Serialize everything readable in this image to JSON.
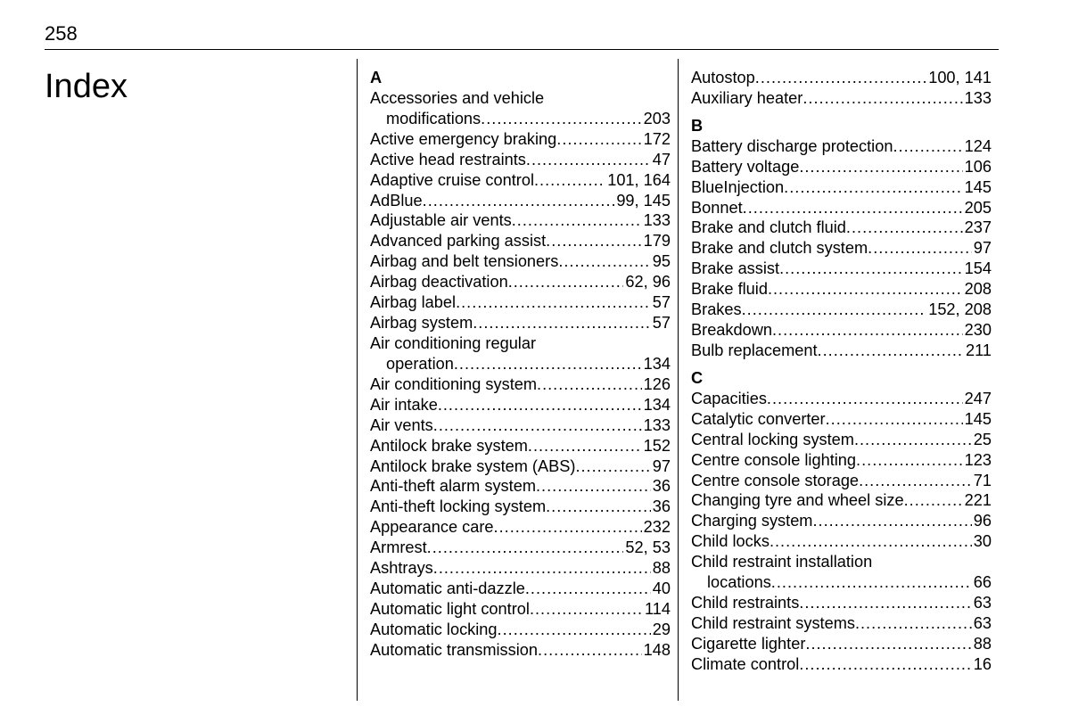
{
  "page_number": "258",
  "title": "Index",
  "columns": [
    {
      "sections": [
        {
          "letter": "A",
          "entries": [
            {
              "label": "Accessories and vehicle",
              "pages": "",
              "wrap": true
            },
            {
              "label": "modifications",
              "pages": "203",
              "indent": true
            },
            {
              "label": "Active emergency braking",
              "pages": "172"
            },
            {
              "label": "Active head restraints",
              "pages": "47"
            },
            {
              "label": "Adaptive cruise control",
              "pages": "101, 164"
            },
            {
              "label": "AdBlue",
              "pages": "99, 145"
            },
            {
              "label": "Adjustable air vents",
              "pages": "133"
            },
            {
              "label": "Advanced parking assist",
              "pages": "179"
            },
            {
              "label": "Airbag and belt tensioners",
              "pages": "95"
            },
            {
              "label": "Airbag deactivation",
              "pages": "62, 96"
            },
            {
              "label": "Airbag label",
              "pages": "57"
            },
            {
              "label": "Airbag system",
              "pages": "57"
            },
            {
              "label": "Air conditioning regular",
              "pages": "",
              "wrap": true
            },
            {
              "label": "operation",
              "pages": "134",
              "indent": true
            },
            {
              "label": "Air conditioning system",
              "pages": "126"
            },
            {
              "label": "Air intake",
              "pages": "134"
            },
            {
              "label": "Air vents",
              "pages": "133"
            },
            {
              "label": "Antilock brake system",
              "pages": "152"
            },
            {
              "label": "Antilock brake system (ABS)",
              "pages": "97"
            },
            {
              "label": "Anti-theft alarm system",
              "pages": "36"
            },
            {
              "label": "Anti-theft locking system",
              "pages": "36"
            },
            {
              "label": "Appearance care",
              "pages": "232"
            },
            {
              "label": "Armrest",
              "pages": "52, 53"
            },
            {
              "label": "Ashtrays",
              "pages": "88"
            },
            {
              "label": "Automatic anti-dazzle",
              "pages": "40"
            },
            {
              "label": "Automatic light control",
              "pages": "114"
            },
            {
              "label": "Automatic locking",
              "pages": "29"
            },
            {
              "label": "Automatic transmission",
              "pages": "148"
            }
          ]
        }
      ]
    },
    {
      "sections": [
        {
          "letter": "",
          "entries": [
            {
              "label": "Autostop",
              "pages": "100, 141"
            },
            {
              "label": "Auxiliary heater",
              "pages": "133"
            }
          ]
        },
        {
          "letter": "B",
          "entries": [
            {
              "label": "Battery discharge protection",
              "pages": "124"
            },
            {
              "label": "Battery voltage",
              "pages": "106"
            },
            {
              "label": "BlueInjection",
              "pages": "145"
            },
            {
              "label": "Bonnet",
              "pages": "205"
            },
            {
              "label": "Brake and clutch fluid",
              "pages": "237"
            },
            {
              "label": "Brake and clutch system",
              "pages": "97"
            },
            {
              "label": "Brake assist",
              "pages": "154"
            },
            {
              "label": "Brake fluid",
              "pages": "208"
            },
            {
              "label": "Brakes",
              "pages": "152, 208"
            },
            {
              "label": "Breakdown",
              "pages": "230"
            },
            {
              "label": "Bulb replacement",
              "pages": "211"
            }
          ]
        },
        {
          "letter": "C",
          "entries": [
            {
              "label": "Capacities",
              "pages": "247"
            },
            {
              "label": "Catalytic converter",
              "pages": "145"
            },
            {
              "label": "Central locking system",
              "pages": "25"
            },
            {
              "label": "Centre console lighting",
              "pages": "123"
            },
            {
              "label": "Centre console storage",
              "pages": "71"
            },
            {
              "label": "Changing tyre and wheel size",
              "pages": "221"
            },
            {
              "label": "Charging system",
              "pages": "96"
            },
            {
              "label": "Child locks",
              "pages": "30"
            },
            {
              "label": "Child restraint installation",
              "pages": "",
              "wrap": true
            },
            {
              "label": "locations",
              "pages": "66",
              "indent": true
            },
            {
              "label": "Child restraints",
              "pages": "63"
            },
            {
              "label": "Child restraint systems",
              "pages": "63"
            },
            {
              "label": "Cigarette lighter",
              "pages": "88"
            },
            {
              "label": "Climate control",
              "pages": "16"
            }
          ]
        }
      ]
    }
  ]
}
